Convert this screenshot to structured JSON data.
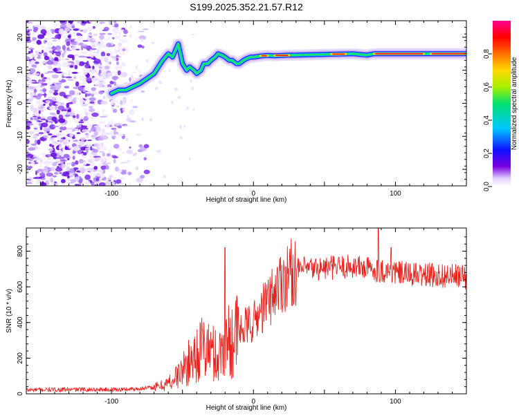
{
  "title": "S199.2025.352.21.57.R12",
  "chart_data": [
    {
      "type": "heatmap",
      "xlabel": "Height of straight line (km)",
      "ylabel": "Frequency (Hz)",
      "xlim": [
        -160,
        150
      ],
      "ylim": [
        -25,
        25
      ],
      "x_ticks": [
        -100,
        0,
        100
      ],
      "y_ticks": [
        -20,
        -10,
        0,
        10,
        20
      ],
      "colorbar": {
        "label": "Normalized spectral amplitude",
        "range": [
          0,
          1
        ],
        "ticks": [
          "0.0",
          "0.2",
          "0.4",
          "0.6",
          "0.8"
        ],
        "colormap": [
          "#ffffff",
          "#7a00e0",
          "#1010ff",
          "#00c8ff",
          "#00e070",
          "#a8f000",
          "#ffd800",
          "#ff7000",
          "#ff0000",
          "#ff0090"
        ]
      },
      "ridge": {
        "x": [
          -100,
          -95,
          -90,
          -85,
          -80,
          -75,
          -70,
          -67,
          -64,
          -60,
          -57,
          -55,
          -53,
          -50,
          -47,
          -45,
          -42,
          -40,
          -37,
          -35,
          -32,
          -30,
          -27,
          -25,
          -22,
          -20,
          -17,
          -15,
          -12,
          -10,
          -7,
          -5,
          -2,
          0,
          5,
          10,
          15,
          20,
          25,
          30,
          40,
          50,
          60,
          70,
          80,
          82,
          85,
          90,
          100,
          110,
          120,
          130,
          140,
          150
        ],
        "y": [
          3,
          4,
          4,
          5,
          6,
          7.5,
          9,
          11,
          13,
          15,
          14,
          16,
          18,
          12,
          10,
          11,
          10,
          9,
          10,
          12,
          12,
          13,
          14,
          15,
          14.5,
          14,
          13,
          13,
          12,
          12,
          13,
          13.5,
          14,
          14,
          14.3,
          14.5,
          14.4,
          14.5,
          14.6,
          14.6,
          14.7,
          14.8,
          14.9,
          15,
          14.6,
          14.8,
          15,
          15,
          15,
          15,
          15,
          15,
          15,
          15
        ]
      }
    },
    {
      "type": "line",
      "xlabel": "Height of straight line (km)",
      "ylabel": "SNR (10 * v/v)",
      "xlim": [
        -160,
        150
      ],
      "ylim": [
        0,
        930
      ],
      "x_ticks": [
        -100,
        0,
        100
      ],
      "y_ticks": [
        0,
        200,
        400,
        600,
        800
      ],
      "color": "#e8231f",
      "series": [
        {
          "name": "",
          "x": [
            -160,
            -140,
            -120,
            -100,
            -90,
            -80,
            -70,
            -65,
            -60,
            -55,
            -50,
            -45,
            -40,
            -35,
            -30,
            -25,
            -20,
            -15,
            -10,
            -5,
            0,
            5,
            10,
            15,
            20,
            25,
            30,
            35,
            40,
            50,
            60,
            70,
            80,
            90,
            100,
            110,
            120,
            130,
            140,
            150
          ],
          "y": [
            22,
            23,
            24,
            24,
            25,
            30,
            35,
            45,
            60,
            90,
            130,
            180,
            230,
            260,
            240,
            200,
            280,
            320,
            340,
            380,
            400,
            460,
            520,
            580,
            640,
            670,
            690,
            700,
            700,
            705,
            710,
            715,
            705,
            690,
            680,
            670,
            665,
            665,
            660,
            655
          ]
        }
      ],
      "spikes": [
        {
          "x": -20,
          "y": 820
        },
        {
          "x": 88,
          "y": 930
        },
        {
          "x": 97,
          "y": 820
        }
      ]
    }
  ]
}
